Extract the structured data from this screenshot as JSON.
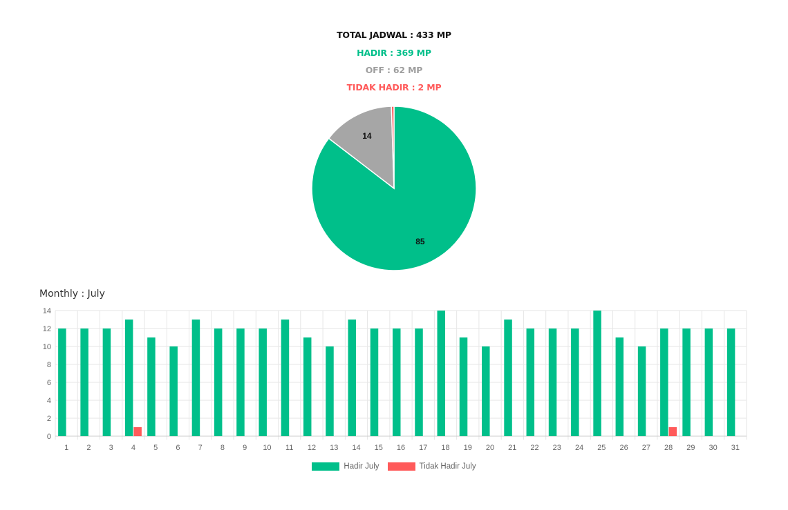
{
  "summary": {
    "total": "TOTAL JADWAL : 433 MP",
    "hadir": "HADIR : 369 MP",
    "off": "OFF : 62 MP",
    "tidak_hadir": "TIDAK HADIR : 2 MP"
  },
  "colors": {
    "hadir": "#00bf8a",
    "off": "#a6a6a6",
    "tidak_hadir": "#ff5a5a"
  },
  "chart_data": [
    {
      "type": "pie",
      "slices": [
        {
          "label": "85",
          "value": 85,
          "color": "#00bf8a"
        },
        {
          "label": "14",
          "value": 14,
          "color": "#a6a6a6"
        },
        {
          "label": "",
          "value": 0.5,
          "color": "#ff5a5a"
        }
      ]
    },
    {
      "type": "bar",
      "title": "Monthly : July",
      "categories": [
        "1",
        "2",
        "3",
        "4",
        "5",
        "6",
        "7",
        "8",
        "9",
        "10",
        "11",
        "12",
        "13",
        "14",
        "15",
        "16",
        "17",
        "18",
        "19",
        "20",
        "21",
        "22",
        "23",
        "24",
        "25",
        "26",
        "27",
        "28",
        "29",
        "30",
        "31"
      ],
      "series": [
        {
          "name": "Hadir July",
          "color": "#00bf8a",
          "values": [
            12,
            12,
            12,
            13,
            11,
            10,
            13,
            12,
            12,
            12,
            13,
            11,
            10,
            13,
            12,
            12,
            12,
            14,
            11,
            10,
            13,
            12,
            12,
            12,
            14,
            11,
            10,
            12,
            12,
            12,
            12
          ]
        },
        {
          "name": "Tidak Hadir July",
          "color": "#ff5a5a",
          "values": [
            0,
            0,
            0,
            1,
            0,
            0,
            0,
            0,
            0,
            0,
            0,
            0,
            0,
            0,
            0,
            0,
            0,
            0,
            0,
            0,
            0,
            0,
            0,
            0,
            0,
            0,
            0,
            1,
            0,
            0,
            0
          ]
        }
      ],
      "ylim": [
        0,
        14
      ],
      "yticks": [
        0,
        2,
        4,
        6,
        8,
        10,
        12,
        14
      ],
      "grid": true,
      "legend": "bottom"
    }
  ]
}
